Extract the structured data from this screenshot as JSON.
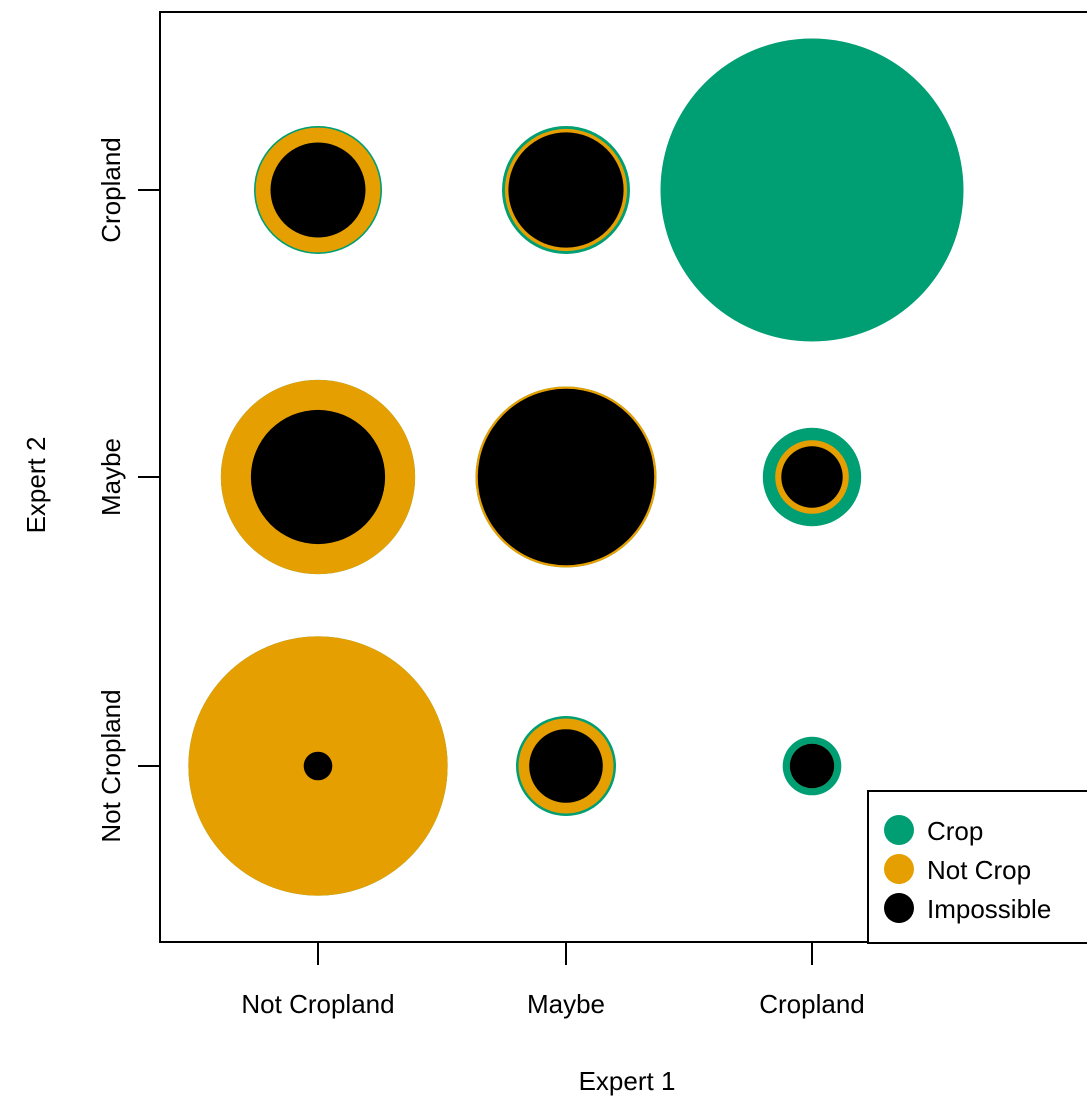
{
  "chart_data": {
    "type": "bubble",
    "xlabel": "Expert 1",
    "ylabel": "Expert 2",
    "x_categories": [
      "Not Cropland",
      "Maybe",
      "Cropland"
    ],
    "y_categories": [
      "Not Cropland",
      "Maybe",
      "Cropland"
    ],
    "grid": false,
    "legend_position": "bottom-right",
    "legend": [
      {
        "name": "Crop",
        "color": "#009E73"
      },
      {
        "name": "Not Crop",
        "color": "#E69F00"
      },
      {
        "name": "Impossible",
        "color": "#000000"
      }
    ],
    "cells": [
      {
        "x": "Not Cropland",
        "y": "Cropland",
        "crop": 1.0,
        "not_crop": 0.95,
        "impossible": 0.55
      },
      {
        "x": "Maybe",
        "y": "Cropland",
        "crop": 1.0,
        "not_crop": 0.91,
        "impossible": 0.81
      },
      {
        "x": "Cropland",
        "y": "Cropland",
        "crop": 5.6,
        "not_crop": 0,
        "impossible": 0
      },
      {
        "x": "Not Cropland",
        "y": "Maybe",
        "crop": 2.3,
        "not_crop": 2.3,
        "impossible": 1.1
      },
      {
        "x": "Maybe",
        "y": "Maybe",
        "crop": 2.0,
        "not_crop": 2.0,
        "impossible": 1.9
      },
      {
        "x": "Cropland",
        "y": "Maybe",
        "crop": 0.59,
        "not_crop": 0.33,
        "impossible": 0.23
      },
      {
        "x": "Not Cropland",
        "y": "Not Cropland",
        "crop": 4.1,
        "not_crop": 4.1,
        "impossible": 0.05
      },
      {
        "x": "Maybe",
        "y": "Not Cropland",
        "crop": 0.61,
        "not_crop": 0.55,
        "impossible": 0.33
      },
      {
        "x": "Cropland",
        "y": "Not Cropland",
        "crop": 0.21,
        "not_crop": 0.12,
        "impossible": 0.12
      }
    ]
  }
}
